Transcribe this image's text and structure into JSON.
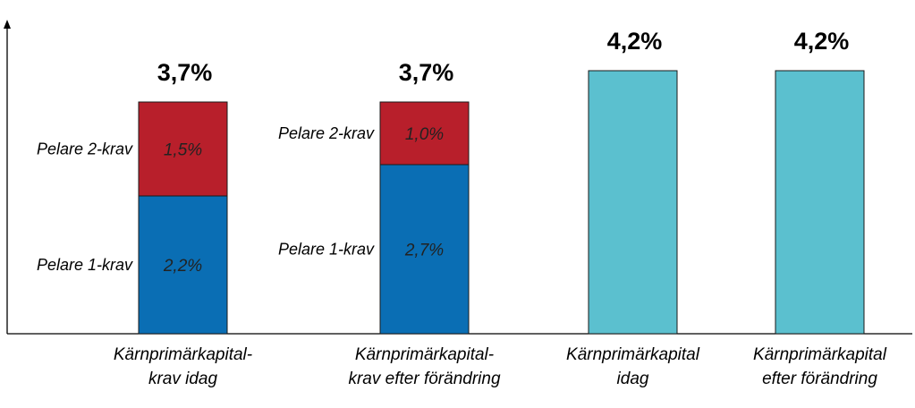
{
  "chart_data": {
    "type": "bar",
    "stacked": true,
    "categories": [
      [
        "Kärnprimärkapital-",
        "krav idag"
      ],
      [
        "Kärnprimärkapital-",
        "krav efter förändring"
      ],
      [
        "Kärnprimärkapital",
        "idag"
      ],
      [
        "Kärnprimärkapital",
        "efter förändring"
      ]
    ],
    "series": [
      {
        "name": "Pelare 1-krav",
        "color": "#0a6eb4",
        "values": [
          2.2,
          2.7,
          null,
          null
        ],
        "value_labels": [
          "2,2%",
          "2,7%",
          "",
          ""
        ],
        "side_labels": [
          "Pelare 1-krav",
          "Pelare 1-krav",
          "",
          ""
        ]
      },
      {
        "name": "Pelare 2-krav",
        "color": "#b81f2b",
        "values": [
          1.5,
          1.0,
          null,
          null
        ],
        "value_labels": [
          "1,5%",
          "1,0%",
          "",
          ""
        ],
        "side_labels": [
          "Pelare 2-krav",
          "Pelare 2-krav",
          "",
          ""
        ]
      },
      {
        "color": "#5bc0cf",
        "values": [
          null,
          null,
          4.2,
          4.2
        ],
        "value_labels": [
          "",
          "",
          "",
          ""
        ],
        "side_labels": [
          "",
          "",
          "",
          ""
        ]
      }
    ],
    "totals": [
      3.7,
      3.7,
      4.2,
      4.2
    ],
    "total_labels": [
      "3,7%",
      "3,7%",
      "4,2%",
      "4,2%"
    ],
    "ylim": [
      0,
      4.86
    ],
    "grid": false,
    "xlabel": "",
    "ylabel": ""
  }
}
